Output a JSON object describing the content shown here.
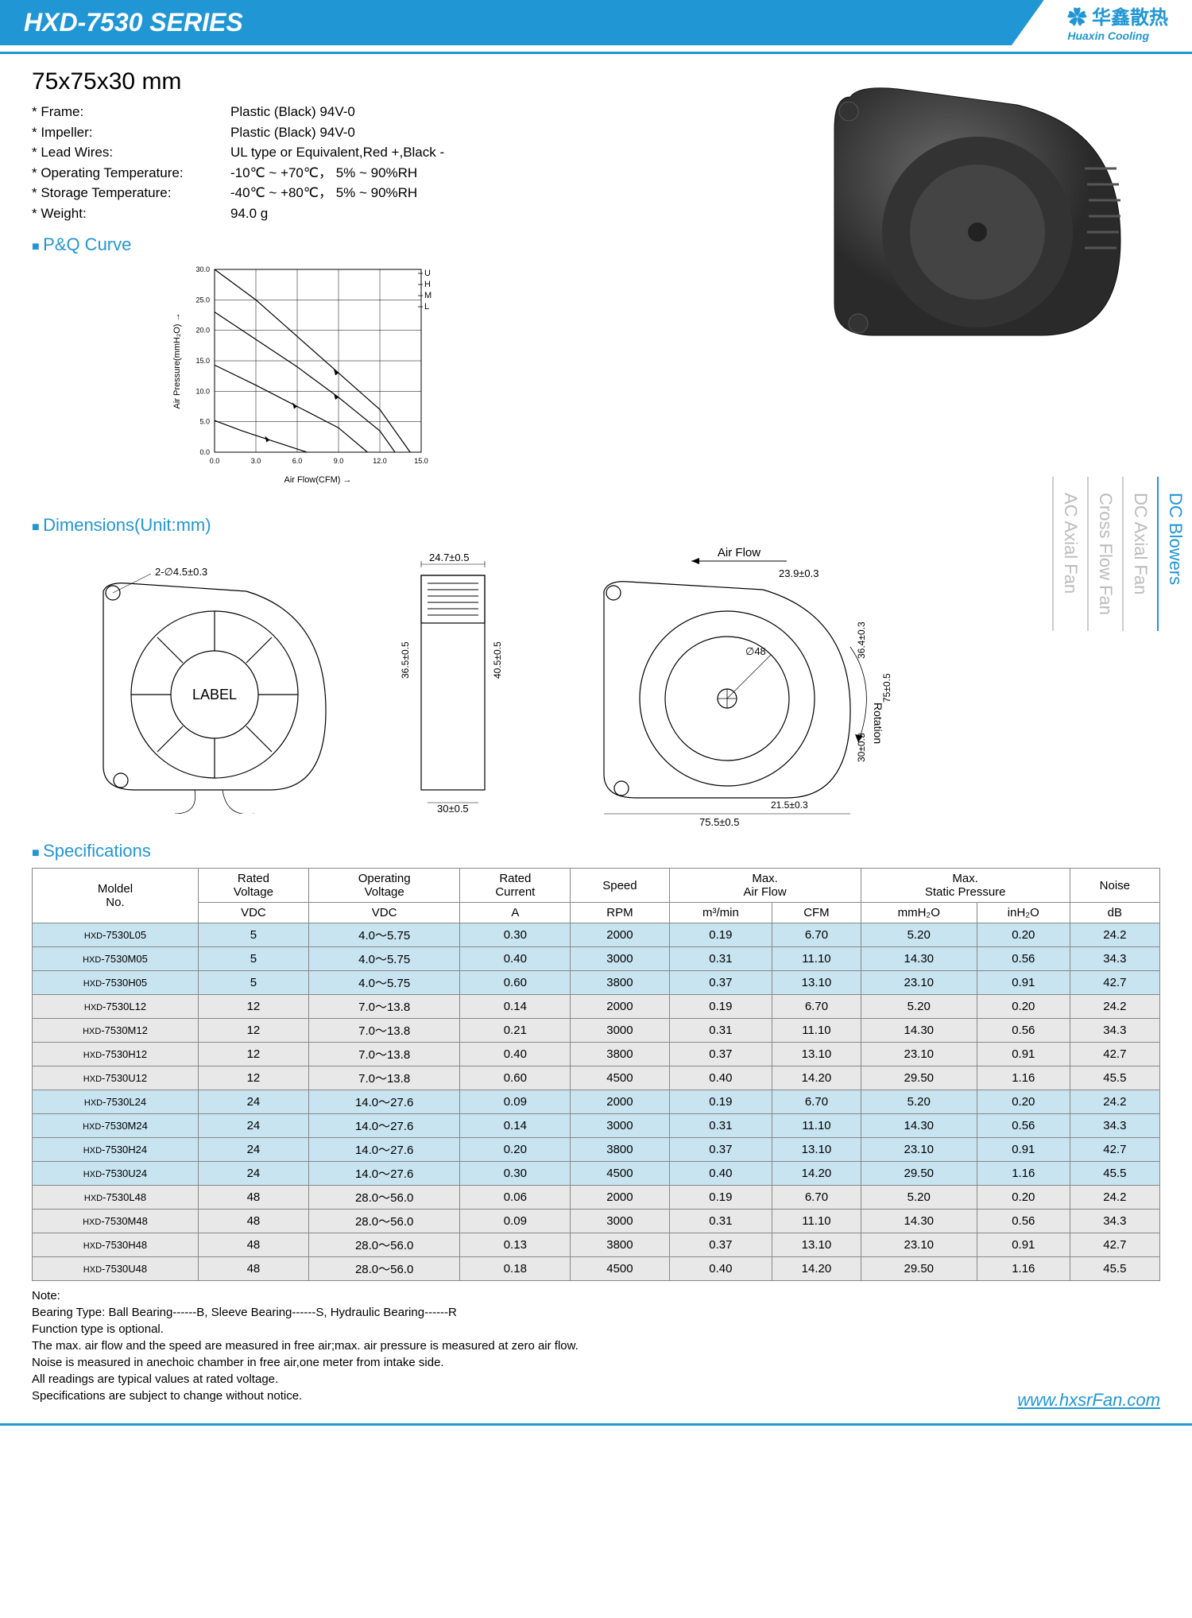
{
  "header": {
    "series": "HXD-7530 SERIES",
    "logo_cn": "✿ 华鑫散热",
    "logo_en": "Huaxin Cooling"
  },
  "dimensions_title": "75x75x30 mm",
  "properties": [
    {
      "label": "* Frame:",
      "value": "Plastic (Black) 94V-0"
    },
    {
      "label": "* Impeller:",
      "value": "Plastic (Black) 94V-0"
    },
    {
      "label": "* Lead Wires:",
      "value": "UL type or Equivalent,Red +,Black -"
    },
    {
      "label": "* Operating Temperature:",
      "value": "-10℃ ~ +70℃， 5% ~ 90%RH"
    },
    {
      "label": "* Storage Temperature:",
      "value": "-40℃ ~ +80℃， 5% ~ 90%RH"
    },
    {
      "label": "* Weight:",
      "value": "94.0  g"
    }
  ],
  "sections": {
    "pq": "P&Q Curve",
    "dims": "Dimensions(Unit:mm)",
    "specs": "Specifications"
  },
  "pq_chart": {
    "type": "line",
    "xlabel": "Air Flow(CFM)  →",
    "ylabel": "Air Pressure(mmH₂O)  →",
    "xlim": [
      0,
      15
    ],
    "ylim": [
      0,
      30
    ],
    "xtick_step": 3,
    "ytick_step": 5,
    "xticks": [
      "0.0",
      "3.0",
      "6.0",
      "9.0",
      "12.0",
      "15.0"
    ],
    "yticks": [
      "0.0",
      "5.0",
      "10.0",
      "15.0",
      "20.0",
      "25.0",
      "30.0"
    ],
    "series_labels": [
      "U",
      "H",
      "M",
      "L"
    ],
    "curves": {
      "U": [
        [
          0,
          30
        ],
        [
          3,
          25
        ],
        [
          6,
          19
        ],
        [
          9,
          13
        ],
        [
          12,
          7
        ],
        [
          14.2,
          0
        ]
      ],
      "H": [
        [
          0,
          23
        ],
        [
          3,
          18.5
        ],
        [
          6,
          14
        ],
        [
          9,
          9
        ],
        [
          12,
          3.5
        ],
        [
          13.1,
          0
        ]
      ],
      "M": [
        [
          0,
          14.3
        ],
        [
          3,
          11
        ],
        [
          6,
          7.5
        ],
        [
          9,
          4
        ],
        [
          11.1,
          0
        ]
      ],
      "L": [
        [
          0,
          5.2
        ],
        [
          2,
          3.5
        ],
        [
          4,
          2
        ],
        [
          6.7,
          0
        ]
      ]
    },
    "line_color": "#000000",
    "grid_color": "#000000",
    "background_color": "#ffffff",
    "axis_fontsize": 9,
    "label_fontsize": 11
  },
  "dimension_drawings": {
    "airflow_label": "Air Flow",
    "rotation_label": "Rotation",
    "label_text": "LABEL",
    "callouts": [
      "2-∅4.5±0.3",
      "24.7±0.5",
      "23.9±0.3",
      "40.5±0.5",
      "36.5±0.5",
      "∅48",
      "36.4±0.3",
      "75±0.5",
      "30±0.3",
      "30±0.5",
      "21.5±0.3",
      "75.5±0.5"
    ]
  },
  "spec_table": {
    "headers_row1": [
      "Moldel\nNo.",
      "Rated\nVoltage",
      "Operating\nVoltage",
      "Rated\nCurrent",
      "Speed",
      "Max.\nAir Flow",
      "Max.\nStatic Pressure",
      "Noise"
    ],
    "headers_row2": [
      "VDC",
      "VDC",
      "A",
      "RPM",
      "m³/min",
      "CFM",
      "mmH₂O",
      "inH₂O",
      "dB"
    ],
    "groups": [
      {
        "class": "grp1",
        "rows": [
          [
            "HXD-7530L05",
            "5",
            "4.0～5.75",
            "0.30",
            "2000",
            "0.19",
            "6.70",
            "5.20",
            "0.20",
            "24.2"
          ],
          [
            "HXD-7530M05",
            "5",
            "4.0～5.75",
            "0.40",
            "3000",
            "0.31",
            "11.10",
            "14.30",
            "0.56",
            "34.3"
          ],
          [
            "HXD-7530H05",
            "5",
            "4.0～5.75",
            "0.60",
            "3800",
            "0.37",
            "13.10",
            "23.10",
            "0.91",
            "42.7"
          ]
        ]
      },
      {
        "class": "grp2",
        "rows": [
          [
            "HXD-7530L12",
            "12",
            "7.0～13.8",
            "0.14",
            "2000",
            "0.19",
            "6.70",
            "5.20",
            "0.20",
            "24.2"
          ],
          [
            "HXD-7530M12",
            "12",
            "7.0～13.8",
            "0.21",
            "3000",
            "0.31",
            "11.10",
            "14.30",
            "0.56",
            "34.3"
          ],
          [
            "HXD-7530H12",
            "12",
            "7.0～13.8",
            "0.40",
            "3800",
            "0.37",
            "13.10",
            "23.10",
            "0.91",
            "42.7"
          ],
          [
            "HXD-7530U12",
            "12",
            "7.0～13.8",
            "0.60",
            "4500",
            "0.40",
            "14.20",
            "29.50",
            "1.16",
            "45.5"
          ]
        ]
      },
      {
        "class": "grp1",
        "rows": [
          [
            "HXD-7530L24",
            "24",
            "14.0～27.6",
            "0.09",
            "2000",
            "0.19",
            "6.70",
            "5.20",
            "0.20",
            "24.2"
          ],
          [
            "HXD-7530M24",
            "24",
            "14.0～27.6",
            "0.14",
            "3000",
            "0.31",
            "11.10",
            "14.30",
            "0.56",
            "34.3"
          ],
          [
            "HXD-7530H24",
            "24",
            "14.0～27.6",
            "0.20",
            "3800",
            "0.37",
            "13.10",
            "23.10",
            "0.91",
            "42.7"
          ],
          [
            "HXD-7530U24",
            "24",
            "14.0～27.6",
            "0.30",
            "4500",
            "0.40",
            "14.20",
            "29.50",
            "1.16",
            "45.5"
          ]
        ]
      },
      {
        "class": "grp2",
        "rows": [
          [
            "HXD-7530L48",
            "48",
            "28.0～56.0",
            "0.06",
            "2000",
            "0.19",
            "6.70",
            "5.20",
            "0.20",
            "24.2"
          ],
          [
            "HXD-7530M48",
            "48",
            "28.0～56.0",
            "0.09",
            "3000",
            "0.31",
            "11.10",
            "14.30",
            "0.56",
            "34.3"
          ],
          [
            "HXD-7530H48",
            "48",
            "28.0～56.0",
            "0.13",
            "3800",
            "0.37",
            "13.10",
            "23.10",
            "0.91",
            "42.7"
          ],
          [
            "HXD-7530U48",
            "48",
            "28.0～56.0",
            "0.18",
            "4500",
            "0.40",
            "14.20",
            "29.50",
            "1.16",
            "45.5"
          ]
        ]
      }
    ]
  },
  "notes": {
    "title": "Note:",
    "lines": [
      "Bearing Type:  Ball Bearing------B,  Sleeve Bearing------S, Hydraulic Bearing------R",
      "Function type is optional.",
      "The max. air flow and the speed are measured in free air;max. air pressure is measured at zero air flow.",
      "Noise is measured in anechoic chamber in free air,one meter from intake side.",
      "All readings are typical values at rated voltage.",
      "Specifications are subject to change without notice."
    ]
  },
  "side_tabs": [
    "DC Blowers",
    "DC Axial Fan",
    "Cross Flow Fan",
    "AC Axial Fan"
  ],
  "footer_url": "www.hxsrFan.com"
}
